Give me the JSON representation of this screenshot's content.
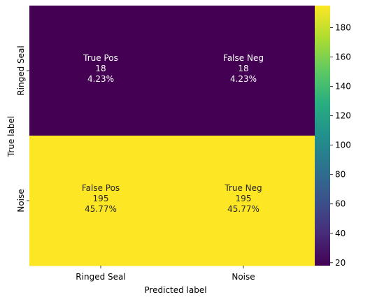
{
  "chart_data": {
    "type": "heatmap",
    "title": "",
    "xlabel": "Predicted label",
    "ylabel": "True label",
    "x_categories": [
      "Ringed Seal",
      "Noise"
    ],
    "y_categories": [
      "Ringed Seal",
      "Noise"
    ],
    "cells": [
      [
        {
          "name": "True Pos",
          "count": 18,
          "percent": "4.23%",
          "text": "True Pos\n18\n4.23%"
        },
        {
          "name": "False Neg",
          "count": 18,
          "percent": "4.23%",
          "text": "False Neg\n18\n4.23%"
        }
      ],
      [
        {
          "name": "False Pos",
          "count": 195,
          "percent": "45.77%",
          "text": "False Pos\n195\n45.77%"
        },
        {
          "name": "True Neg",
          "count": 195,
          "percent": "45.77%",
          "text": "True Neg\n195\n45.77%"
        }
      ]
    ],
    "colormap": "viridis",
    "colorbar": {
      "range": [
        18,
        195
      ],
      "ticks": [
        "20",
        "40",
        "60",
        "80",
        "100",
        "120",
        "140",
        "160",
        "180"
      ]
    },
    "grid": false,
    "legend": "colorbar-right"
  }
}
